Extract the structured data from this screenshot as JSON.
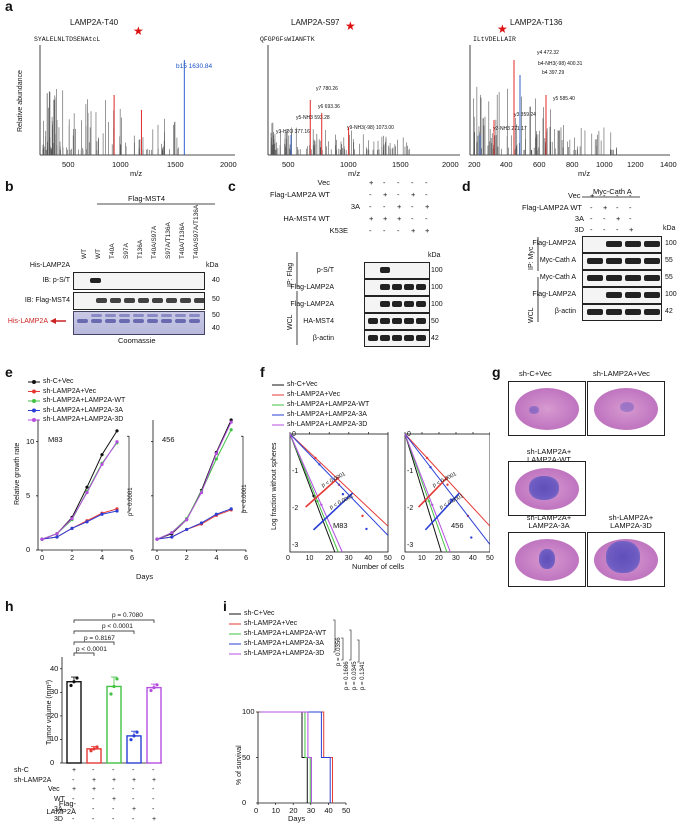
{
  "panels": {
    "a": "a",
    "b": "b",
    "c": "c",
    "d": "d",
    "e": "e",
    "f": "f",
    "g": "g",
    "h": "h",
    "i": "i"
  },
  "panel_a": {
    "ylabel": "Relative abundance",
    "xlabel": "m/z",
    "spectra": [
      {
        "title": "LAMP2A-T40",
        "sequence": "SYALELNLTDSENAtcL",
        "ticks": [
          "500",
          "1000",
          "1500",
          "2000"
        ],
        "peak_label": "b15 1630.84"
      },
      {
        "title": "LAMP2A-S97",
        "sequence": "QFGPGFsWIANFTK",
        "ticks": [
          "500",
          "1000",
          "1500",
          "2000"
        ],
        "peak_labels": [
          "y7 780.26",
          "y6 693.36",
          "y5-NH3 593.28",
          "y3-H2O 377.16",
          "y9-NH3(-98) 1073.00"
        ]
      },
      {
        "title": "LAMP2A-T136",
        "sequence": "ILtVDELLAIR",
        "ticks": [
          "200",
          "400",
          "600",
          "800",
          "1000",
          "1200",
          "1400"
        ],
        "peak_labels": [
          "y4 472.32",
          "b4-NH3(-98) 400.31",
          "b4 397.29",
          "y5 585.40",
          "y3 359.24",
          "y2-NH3 271.17"
        ]
      }
    ]
  },
  "panel_b": {
    "header": "Flag-MST4",
    "lanes": [
      "WT",
      "WT",
      "T40A",
      "S97A",
      "T136A",
      "T40A/S97A",
      "S97A/T136A",
      "T40A/T136A",
      "T40A/S97A/T136A"
    ],
    "rows": [
      "His-LAMP2A",
      "IB: p-S/T",
      "IB: Flag-MST4",
      "His-LAMP2A"
    ],
    "kda": [
      "kDa",
      "40",
      "50",
      "50",
      "40"
    ],
    "footer": "Coomassie"
  },
  "panel_c": {
    "conditions": [
      {
        "label": "Vec",
        "marks": [
          "+",
          "-",
          "-",
          "-",
          "-"
        ]
      },
      {
        "label": "Flag-LAMP2A WT",
        "marks": [
          "-",
          "+",
          "-",
          "+",
          "-"
        ]
      },
      {
        "label": "3A",
        "marks": [
          "-",
          "-",
          "+",
          "-",
          "+"
        ]
      },
      {
        "label": "HA-MST4 WT",
        "marks": [
          "+",
          "+",
          "+",
          "-",
          "-"
        ]
      },
      {
        "label": "K53E",
        "marks": [
          "-",
          "-",
          "-",
          "+",
          "+"
        ]
      }
    ],
    "ip_label": "IP: Flag",
    "wcl_label": "WCL",
    "blots": [
      "p-S/T",
      "Flag-LAMP2A",
      "Flag-LAMP2A",
      "HA-MST4",
      "β-actin"
    ],
    "kda": [
      "kDa",
      "100",
      "100",
      "100",
      "50",
      "42"
    ]
  },
  "panel_d": {
    "header": "Myc-Cath A",
    "conditions": [
      {
        "label": "Vec",
        "marks": [
          "+",
          "-",
          "-",
          "-"
        ]
      },
      {
        "label": "Flag-LAMP2A WT",
        "marks": [
          "-",
          "+",
          "-",
          "-"
        ]
      },
      {
        "label": "3A",
        "marks": [
          "-",
          "-",
          "+",
          "-"
        ]
      },
      {
        "label": "3D",
        "marks": [
          "-",
          "-",
          "-",
          "+"
        ]
      }
    ],
    "ip_label": "IP: Myc",
    "wcl_label": "WCL",
    "blots": [
      "Flag-LAMP2A",
      "Myc-Cath A",
      "Myc-Cath A",
      "Flag-LAMP2A",
      "β-actin"
    ],
    "kda": [
      "kDa",
      "100",
      "55",
      "55",
      "100",
      "42"
    ]
  },
  "panel_e": {
    "legend": [
      "sh-C+Vec",
      "sh-LAMP2A+Vec",
      "sh-LAMP2A+LAMP2A-WT",
      "sh-LAMP2A+LAMP2A-3A",
      "sh-LAMP2A+LAMP2A-3D"
    ],
    "ylabel": "Relative growth rate",
    "xlabel": "Days",
    "cells": [
      "M83",
      "456"
    ],
    "pvalue": "p < 0.0001",
    "xticks": [
      "0",
      "2",
      "4",
      "6"
    ],
    "yticks": [
      "0",
      "5",
      "10"
    ]
  },
  "panel_f": {
    "legend": [
      "sh-C+Vec",
      "sh-LAMP2A+Vec",
      "sh-LAMP2A+LAMP2A-WT",
      "sh-LAMP2A+LAMP2A-3A",
      "sh-LAMP2A+LAMP2A-3D"
    ],
    "ylabel": "Log fraction without spheres",
    "xlabel": "Number of cells",
    "cells": [
      "M83",
      "456"
    ],
    "pvalue": "p < 0.0001",
    "xticks": [
      "0",
      "10",
      "20",
      "30",
      "40",
      "50"
    ],
    "yticks": [
      "0",
      "-1",
      "-2",
      "-3"
    ]
  },
  "panel_g": {
    "labels": [
      "sh-C+Vec",
      "sh-LAMP2A+Vec",
      "sh-LAMP2A+ LAMP2A-WT",
      "sh-LAMP2A+ LAMP2A-3A",
      "sh-LAMP2A+ LAMP2A-3D"
    ]
  },
  "panel_h": {
    "ylabel": "Tumor volume (mm³)",
    "pvalues": [
      "p = 0.7080",
      "p < 0.0001",
      "p = 0.8167",
      "p < 0.0001"
    ],
    "yticks": [
      "0",
      "10",
      "20",
      "30",
      "40"
    ],
    "rows": [
      {
        "label": "sh-C",
        "marks": [
          "+",
          "-",
          "-",
          "-",
          "-"
        ]
      },
      {
        "label": "sh-LAMP2A",
        "marks": [
          "-",
          "+",
          "+",
          "+",
          "+"
        ]
      },
      {
        "label": "Vec",
        "marks": [
          "+",
          "+",
          "-",
          "-",
          "-"
        ]
      },
      {
        "label": "WT",
        "marks": [
          "-",
          "-",
          "+",
          "-",
          "-"
        ]
      },
      {
        "label": "3A",
        "marks": [
          "-",
          "-",
          "-",
          "+",
          "-"
        ]
      },
      {
        "label": "3D",
        "marks": [
          "-",
          "-",
          "-",
          "-",
          "+"
        ]
      }
    ],
    "group_label": "Flag- LAMP2A"
  },
  "panel_i": {
    "legend": [
      "sh-C+Vec",
      "sh-LAMP2A+Vec",
      "sh-LAMP2A+LAMP2A-WT",
      "sh-LAMP2A+LAMP2A-3A",
      "sh-LAMP2A+LAMP2A-3D"
    ],
    "pvalues": [
      "p = 0.0356",
      "p = 0.1686",
      "p = 0.0345",
      "p = 0.1341"
    ],
    "ylabel": "% of survival",
    "xlabel": "Days",
    "xticks": [
      "0",
      "10",
      "20",
      "30",
      "40",
      "50"
    ],
    "yticks": [
      "0",
      "50",
      "100"
    ]
  },
  "colors": {
    "black": "#111111",
    "red": "#e53935",
    "green": "#43c243",
    "blue": "#2a3fd6",
    "purple": "#b44fe0"
  },
  "chart_data": [
    {
      "type": "bar",
      "title": "Tumor volume",
      "ylabel": "Tumor volume (mm³)",
      "categories": [
        "sh-C+Vec",
        "sh-LAMP2A+Vec",
        "sh-LAMP2A+WT",
        "sh-LAMP2A+3A",
        "sh-LAMP2A+3D"
      ],
      "values": [
        34.5,
        6,
        32.5,
        11.5,
        32
      ],
      "errors": [
        2,
        1,
        4,
        2,
        1.5
      ],
      "ylim": [
        0,
        45
      ]
    },
    {
      "type": "line",
      "title": "Relative growth rate M83",
      "xlabel": "Days",
      "ylabel": "Relative growth rate",
      "x": [
        0,
        1,
        2,
        3,
        4,
        5
      ],
      "series": [
        {
          "name": "sh-C+Vec",
          "values": [
            1,
            1.5,
            3,
            5.8,
            8.8,
            11
          ]
        },
        {
          "name": "sh-LAMP2A+Vec",
          "values": [
            1,
            1.2,
            2,
            2.7,
            3.4,
            3.8
          ]
        },
        {
          "name": "sh-LAMP2A+LAMP2A-WT",
          "values": [
            1,
            1.5,
            2.8,
            5.4,
            8.0,
            9.9
          ]
        },
        {
          "name": "sh-LAMP2A+LAMP2A-3A",
          "values": [
            1,
            1.2,
            2.0,
            2.6,
            3.3,
            3.6
          ]
        },
        {
          "name": "sh-LAMP2A+LAMP2A-3D",
          "values": [
            1,
            1.5,
            2.9,
            5.3,
            7.9,
            10.0
          ]
        }
      ],
      "ylim": [
        0,
        12
      ]
    },
    {
      "type": "line",
      "title": "Relative growth rate 456",
      "xlabel": "Days",
      "ylabel": "Relative growth rate",
      "x": [
        0,
        1,
        2,
        3,
        4,
        5
      ],
      "series": [
        {
          "name": "sh-C+Vec",
          "values": [
            1,
            1.5,
            2.8,
            5.5,
            9,
            12
          ]
        },
        {
          "name": "sh-LAMP2A+Vec",
          "values": [
            1,
            1.2,
            1.9,
            2.4,
            3.2,
            3.7
          ]
        },
        {
          "name": "sh-LAMP2A+LAMP2A-WT",
          "values": [
            1,
            1.6,
            2.9,
            5.4,
            8.4,
            11.1
          ]
        },
        {
          "name": "sh-LAMP2A+LAMP2A-3A",
          "values": [
            1,
            1.2,
            1.9,
            2.5,
            3.3,
            3.8
          ]
        },
        {
          "name": "sh-LAMP2A+LAMP2A-3D",
          "values": [
            1,
            1.6,
            2.8,
            5.3,
            8.9,
            11.8
          ]
        }
      ],
      "ylim": [
        0,
        12
      ]
    },
    {
      "type": "line",
      "title": "Survival",
      "xlabel": "Days",
      "ylabel": "% of survival",
      "series": [
        {
          "name": "sh-C+Vec",
          "x": [
            0,
            25,
            25,
            28,
            28
          ],
          "values": [
            100,
            100,
            50,
            50,
            0
          ]
        },
        {
          "name": "sh-LAMP2A+Vec",
          "x": [
            0,
            37,
            37,
            42,
            42
          ],
          "values": [
            100,
            100,
            50,
            50,
            0
          ]
        },
        {
          "name": "sh-LAMP2A+LAMP2A-WT",
          "x": [
            0,
            26,
            26,
            29,
            29
          ],
          "values": [
            100,
            100,
            50,
            50,
            0
          ]
        },
        {
          "name": "sh-LAMP2A+LAMP2A-3A",
          "x": [
            0,
            35,
            35,
            40,
            40
          ],
          "values": [
            100,
            100,
            50,
            50,
            0
          ]
        },
        {
          "name": "sh-LAMP2A+LAMP2A-3D",
          "x": [
            0,
            27,
            27,
            29,
            29
          ],
          "values": [
            100,
            100,
            50,
            50,
            0
          ]
        }
      ],
      "ylim": [
        0,
        100
      ]
    }
  ]
}
